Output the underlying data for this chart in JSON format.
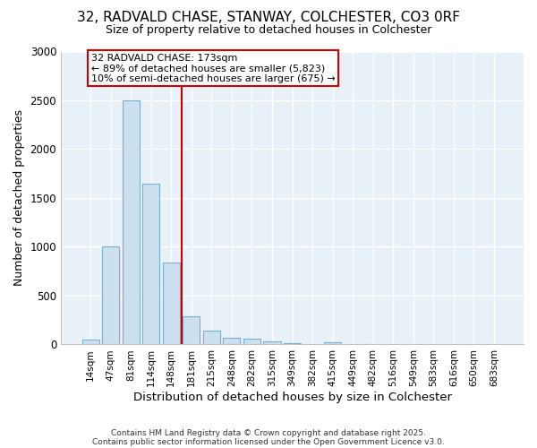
{
  "title": "32, RADVALD CHASE, STANWAY, COLCHESTER, CO3 0RF",
  "subtitle": "Size of property relative to detached houses in Colchester",
  "xlabel": "Distribution of detached houses by size in Colchester",
  "ylabel": "Number of detached properties",
  "categories": [
    "14sqm",
    "47sqm",
    "81sqm",
    "114sqm",
    "148sqm",
    "181sqm",
    "215sqm",
    "248sqm",
    "282sqm",
    "315sqm",
    "349sqm",
    "382sqm",
    "415sqm",
    "449sqm",
    "482sqm",
    "516sqm",
    "549sqm",
    "583sqm",
    "616sqm",
    "650sqm",
    "683sqm"
  ],
  "values": [
    50,
    1000,
    2500,
    1650,
    840,
    290,
    140,
    65,
    60,
    30,
    15,
    0,
    20,
    0,
    0,
    0,
    0,
    0,
    0,
    0,
    0
  ],
  "bar_color": "#cce0f0",
  "bar_edge_color": "#7aafce",
  "vline_x_index": 5,
  "vline_color": "#cc0000",
  "annotation_text": "32 RADVALD CHASE: 173sqm\n← 89% of detached houses are smaller (5,823)\n10% of semi-detached houses are larger (675) →",
  "annotation_box_color": "#cc0000",
  "annotation_text_color": "#000000",
  "ylim": [
    0,
    3000
  ],
  "yticks": [
    0,
    500,
    1000,
    1500,
    2000,
    2500,
    3000
  ],
  "background_color": "#ffffff",
  "plot_bg_color": "#e8f0f8",
  "grid_color": "#ffffff",
  "footer_line1": "Contains HM Land Registry data © Crown copyright and database right 2025.",
  "footer_line2": "Contains public sector information licensed under the Open Government Licence v3.0."
}
